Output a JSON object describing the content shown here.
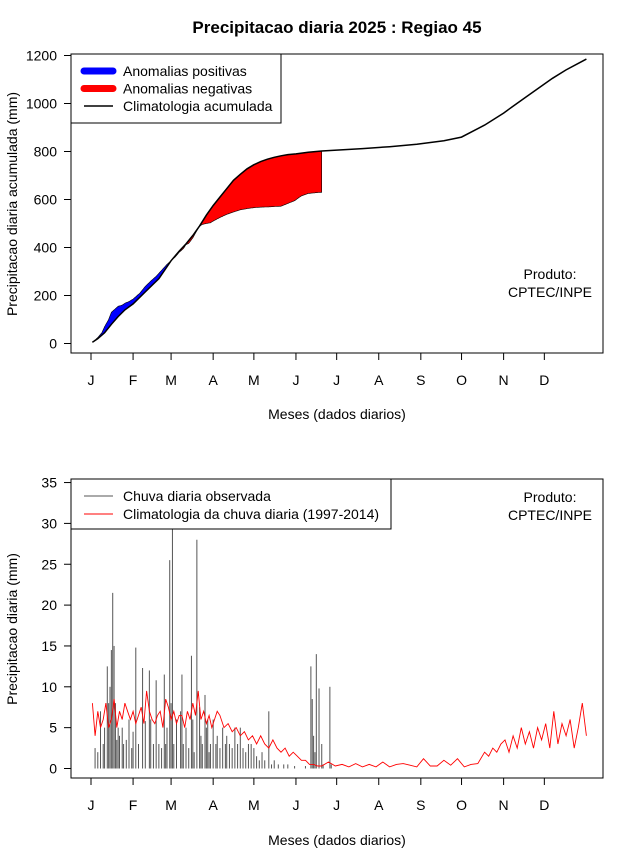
{
  "title": "Precipitacao diaria 2025 : Regiao 45",
  "chart_data": [
    {
      "type": "area",
      "name": "accumulated",
      "xlabel": "Meses (dados diarios)",
      "ylabel": "Precipitacao diaria acumulada (mm)",
      "xlim": [
        0,
        365
      ],
      "ylim": [
        0,
        1200
      ],
      "month_ticks": [
        "J",
        "F",
        "M",
        "A",
        "M",
        "J",
        "J",
        "A",
        "S",
        "O",
        "N",
        "D"
      ],
      "month_start_days": [
        0,
        31,
        59,
        90,
        120,
        151,
        181,
        212,
        243,
        273,
        304,
        334
      ],
      "y_ticks": [
        0,
        200,
        400,
        600,
        800,
        1000,
        1200
      ],
      "legend": {
        "position": "top-left",
        "items": [
          {
            "label": "Anomalias positivas",
            "color": "#0000ff",
            "kind": "band"
          },
          {
            "label": "Anomalias negativas",
            "color": "#ff0000",
            "kind": "band"
          },
          {
            "label": "Climatologia acumulada",
            "color": "#000000",
            "kind": "line"
          }
        ]
      },
      "annotation": [
        "Produto:",
        "CPTEC/INPE"
      ],
      "climatology_accumulated": {
        "x": [
          1,
          5,
          10,
          15,
          20,
          25,
          31,
          40,
          50,
          59,
          65,
          70,
          75,
          80,
          85,
          90,
          95,
          100,
          105,
          110,
          115,
          120,
          125,
          130,
          135,
          140,
          145,
          151,
          160,
          170,
          181,
          200,
          220,
          240,
          260,
          273,
          290,
          304,
          310,
          320,
          330,
          340,
          350,
          360,
          365
        ],
        "y": [
          5,
          20,
          45,
          80,
          112,
          140,
          165,
          215,
          270,
          345,
          385,
          415,
          450,
          490,
          535,
          575,
          610,
          645,
          680,
          705,
          728,
          745,
          758,
          768,
          776,
          782,
          787,
          790,
          797,
          802,
          806,
          812,
          820,
          830,
          845,
          860,
          910,
          960,
          985,
          1025,
          1065,
          1105,
          1140,
          1170,
          1185
        ]
      },
      "observed_accumulated": {
        "x": [
          1,
          3,
          5,
          8,
          10,
          13,
          15,
          17,
          20,
          23,
          25,
          28,
          31,
          36,
          40,
          44,
          48,
          52,
          56,
          59,
          62,
          65,
          68,
          70,
          72,
          75,
          78,
          80,
          82,
          85,
          88,
          90,
          95,
          100,
          105,
          110,
          115,
          120,
          125,
          130,
          140,
          150,
          155,
          160,
          165,
          170
        ],
        "y": [
          5,
          15,
          25,
          45,
          70,
          100,
          130,
          140,
          155,
          160,
          168,
          175,
          185,
          210,
          238,
          260,
          280,
          305,
          330,
          345,
          360,
          380,
          395,
          412,
          417,
          440,
          470,
          488,
          496,
          500,
          503,
          510,
          525,
          538,
          548,
          557,
          562,
          566,
          568,
          569,
          572,
          595,
          615,
          625,
          628,
          630
        ]
      }
    },
    {
      "type": "bar",
      "name": "daily",
      "xlabel": "Meses (dados diarios)",
      "ylabel": "Precipitacao diaria (mm)",
      "xlim": [
        0,
        365
      ],
      "ylim": [
        0,
        35
      ],
      "month_ticks": [
        "J",
        "F",
        "M",
        "A",
        "M",
        "J",
        "J",
        "A",
        "S",
        "O",
        "N",
        "D"
      ],
      "month_start_days": [
        0,
        31,
        59,
        90,
        120,
        151,
        181,
        212,
        243,
        273,
        304,
        334
      ],
      "y_ticks": [
        0,
        5,
        10,
        15,
        20,
        25,
        30,
        35
      ],
      "legend": {
        "position": "top-left",
        "items": [
          {
            "label": "Chuva diaria observada",
            "color": "#555555",
            "kind": "line"
          },
          {
            "label": "Climatologia da chuva diaria (1997-2014)",
            "color": "#ff0000",
            "kind": "line"
          }
        ]
      },
      "annotation": [
        "Produto:",
        "CPTEC/INPE"
      ],
      "observed_daily": {
        "x": [
          3,
          5,
          7,
          9,
          10,
          12,
          13,
          14,
          15,
          16,
          17,
          18,
          19,
          20,
          21,
          23,
          24,
          26,
          28,
          30,
          31,
          33,
          35,
          38,
          40,
          43,
          44,
          46,
          48,
          50,
          52,
          54,
          55,
          56,
          58,
          59,
          60,
          61,
          63,
          66,
          67,
          68,
          70,
          72,
          74,
          75,
          76,
          78,
          80,
          81,
          82,
          84,
          85,
          86,
          87,
          88,
          90,
          92,
          93,
          95,
          97,
          99,
          100,
          102,
          104,
          106,
          108,
          110,
          112,
          114,
          116,
          118,
          120,
          122,
          124,
          126,
          128,
          131,
          133,
          135,
          138,
          142,
          145,
          150,
          158,
          162,
          163,
          164,
          165,
          166,
          168,
          170,
          171,
          176,
          177
        ],
        "y": [
          2.5,
          2,
          7,
          3,
          5,
          12.5,
          8,
          10,
          14.5,
          21.5,
          15,
          8,
          3.5,
          5,
          4,
          5,
          3,
          3.5,
          6,
          2.5,
          4.5,
          14.8,
          3,
          12.3,
          5.8,
          12,
          6,
          3,
          10.8,
          3,
          2.5,
          11.5,
          3,
          5,
          25.5,
          8,
          29.5,
          3,
          6,
          7,
          11.5,
          3,
          5,
          2.5,
          13.8,
          6,
          2,
          28,
          7.5,
          4,
          3,
          9,
          5,
          6,
          2,
          3,
          6,
          3,
          4,
          2.5,
          5,
          3,
          4,
          3,
          2.5,
          5,
          3,
          5,
          2.5,
          2,
          3,
          3,
          2.5,
          1.5,
          1,
          2,
          1,
          7,
          0.5,
          1,
          0.5,
          0.5,
          0.5,
          0.3,
          0.3,
          12.5,
          8.5,
          4,
          2,
          14,
          9.8,
          3,
          0.5,
          10,
          0.5
        ]
      },
      "climatology_daily": {
        "x": [
          1,
          3,
          5,
          7,
          9,
          11,
          13,
          15,
          17,
          19,
          21,
          23,
          25,
          27,
          29,
          31,
          33,
          35,
          37,
          39,
          41,
          43,
          45,
          47,
          49,
          51,
          53,
          55,
          57,
          59,
          61,
          63,
          65,
          67,
          69,
          71,
          73,
          75,
          77,
          79,
          81,
          83,
          85,
          87,
          89,
          91,
          93,
          95,
          98,
          101,
          104,
          107,
          110,
          113,
          116,
          119,
          122,
          125,
          128,
          131,
          134,
          137,
          140,
          143,
          146,
          149,
          152,
          155,
          158,
          161,
          164,
          167,
          170,
          175,
          180,
          185,
          190,
          195,
          200,
          205,
          210,
          215,
          220,
          225,
          230,
          235,
          240,
          245,
          250,
          255,
          260,
          265,
          270,
          275,
          280,
          285,
          290,
          293,
          296,
          299,
          302,
          305,
          308,
          311,
          314,
          317,
          320,
          323,
          326,
          329,
          332,
          335,
          338,
          341,
          344,
          347,
          350,
          353,
          356,
          359,
          362,
          365
        ],
        "y": [
          8,
          4,
          7,
          5,
          6,
          8,
          5,
          6,
          8.5,
          5,
          7,
          6,
          8,
          7,
          6,
          7,
          5.5,
          6.5,
          7.5,
          5.5,
          9.5,
          7,
          6,
          5.5,
          6.5,
          7,
          5,
          8.5,
          7.5,
          6,
          7,
          5.5,
          6.5,
          6.5,
          5,
          7,
          6,
          8,
          6.5,
          9.5,
          6,
          7,
          5.5,
          6.5,
          5,
          6,
          7,
          6.5,
          5,
          5.5,
          4.5,
          5,
          4,
          4.5,
          3.5,
          4,
          3,
          4,
          3,
          2.5,
          3.5,
          2.5,
          2,
          2.5,
          1.5,
          2,
          1.5,
          1,
          1,
          0.5,
          0.5,
          0.3,
          0.3,
          0.8,
          0.3,
          0.5,
          0.2,
          0.6,
          0.2,
          0.5,
          0.2,
          0.8,
          0.2,
          0.5,
          0.6,
          0.4,
          0.2,
          1.2,
          0.3,
          0.3,
          1,
          0.4,
          1.2,
          0.2,
          0.5,
          0.6,
          2,
          1.5,
          2.5,
          2,
          3,
          3.5,
          2,
          4,
          2.5,
          5,
          3,
          4.5,
          2.5,
          5,
          3.5,
          5.5,
          2.5,
          7,
          3,
          5.5,
          4,
          6,
          2.5,
          5,
          8,
          4
        ]
      }
    }
  ]
}
